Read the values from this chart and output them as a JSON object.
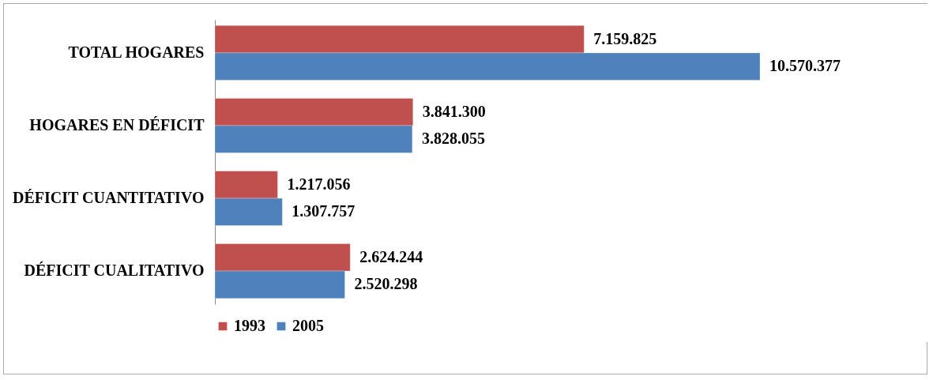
{
  "chart_data": {
    "type": "bar",
    "orientation": "horizontal",
    "categories": [
      "TOTAL HOGARES",
      "HOGARES EN  DÉFICIT",
      "DÉFICIT CUANTITATIVO",
      "DÉFICIT CUALITATIVO"
    ],
    "series": [
      {
        "name": "1993",
        "color": "#c0504d",
        "values": [
          7159825,
          3841300,
          1217056,
          2624244
        ],
        "value_labels": [
          "7.159.825",
          "3.841.300",
          "1.217.056",
          "2.624.244"
        ]
      },
      {
        "name": "2005",
        "color": "#4f81bd",
        "values": [
          10570377,
          3828055,
          1307757,
          2520298
        ],
        "value_labels": [
          "10.570.377",
          "3.828.055",
          "1.307.757",
          "2.520.298"
        ]
      }
    ],
    "legend": "bottom"
  }
}
